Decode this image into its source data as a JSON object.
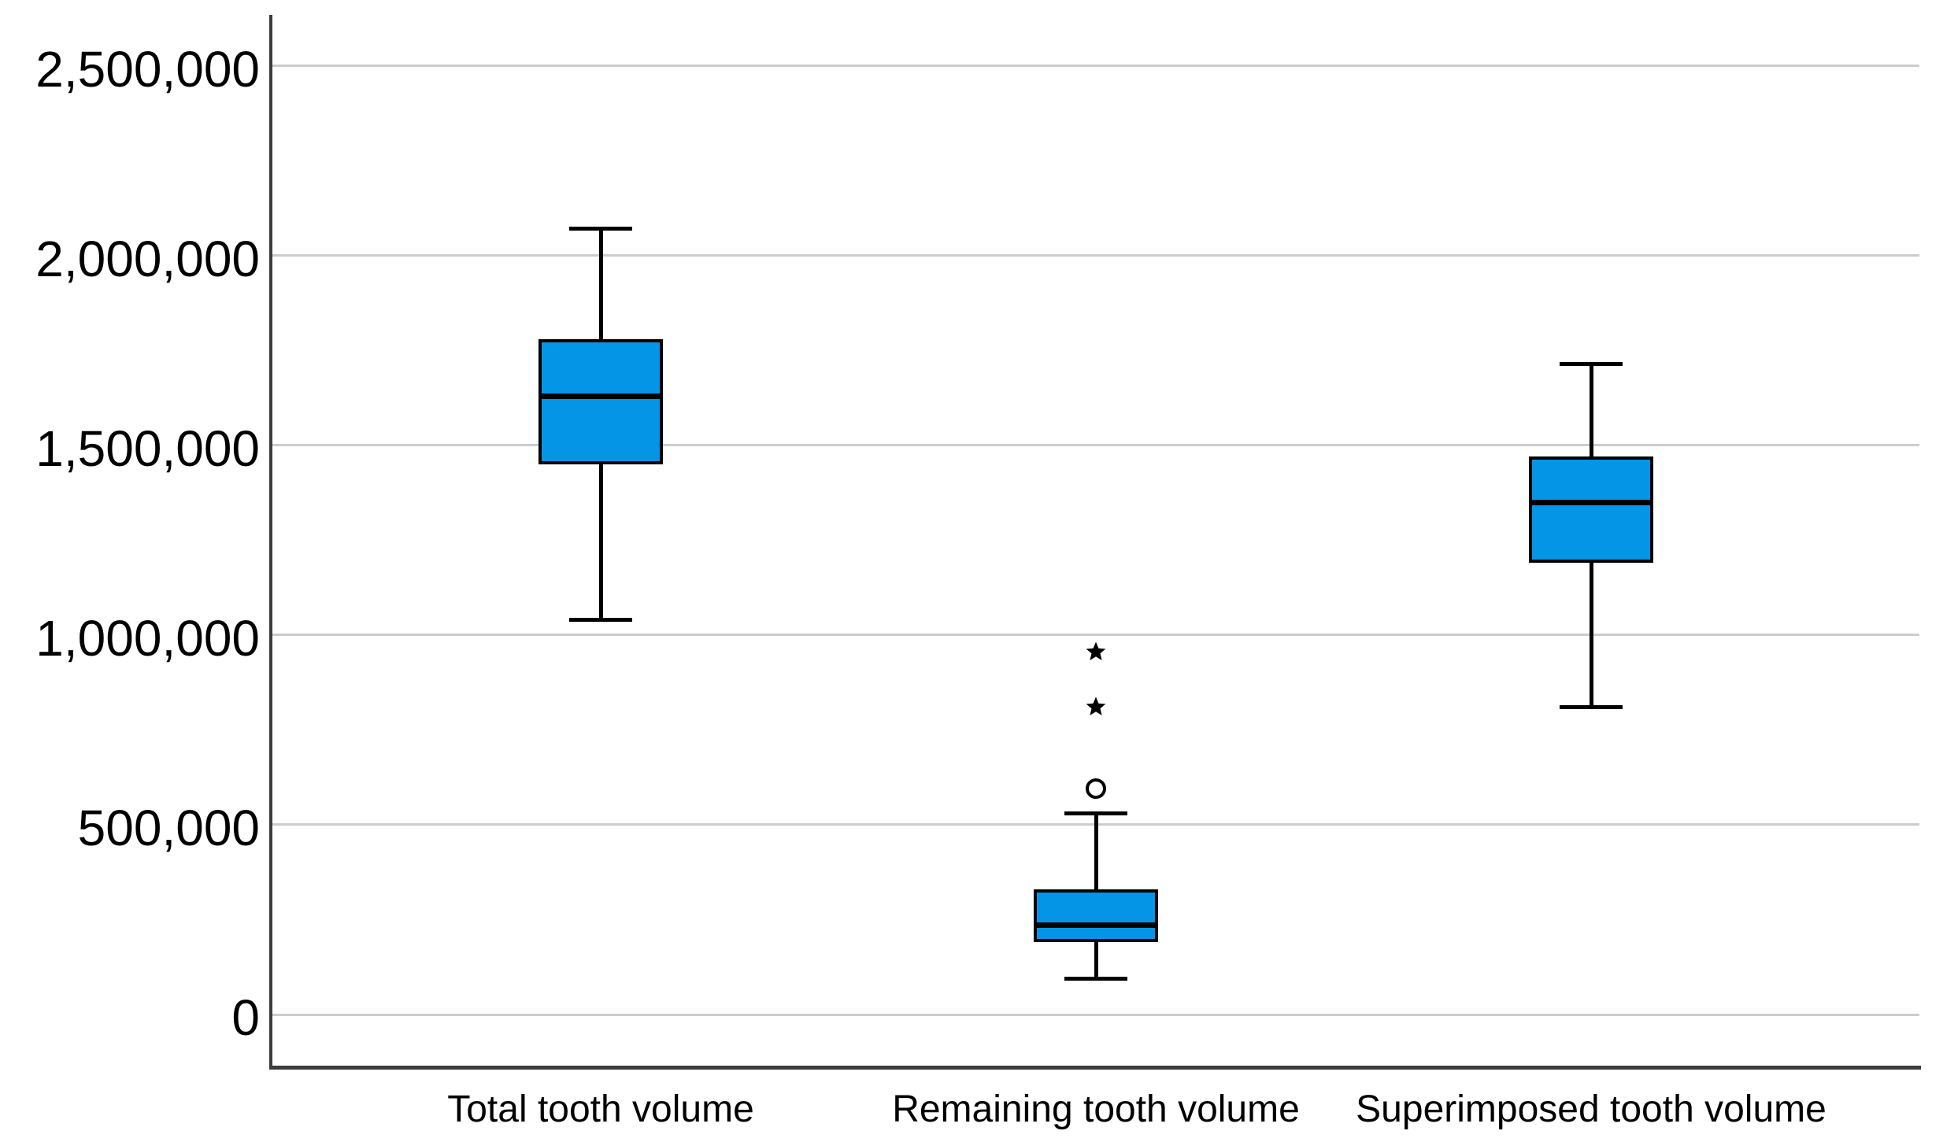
{
  "chart_data": {
    "type": "boxplot",
    "title": "",
    "categories": [
      "Total tooth volume",
      "Remaining tooth volume",
      "Superimposed tooth volume"
    ],
    "ylabel": "",
    "xlabel": "",
    "ylim": [
      0,
      2500000
    ],
    "yticks": [
      0,
      500000,
      1000000,
      1500000,
      2000000,
      2500000
    ],
    "ytick_labels": [
      "0",
      "500,000",
      "1,000,000",
      "1,500,000",
      "2,000,000",
      "2,500,000"
    ],
    "grid": true,
    "legend": "none",
    "series": [
      {
        "name": "Total tooth volume",
        "min": 1040000,
        "q1": 1450000,
        "median": 1630000,
        "q3": 1780000,
        "max": 2070000,
        "outliers_circle": [],
        "extremes_star": []
      },
      {
        "name": "Remaining tooth volume",
        "min": 95000,
        "q1": 190000,
        "median": 235000,
        "q3": 330000,
        "max": 530000,
        "outliers_circle": [
          595000
        ],
        "extremes_star": [
          810000,
          955000
        ]
      },
      {
        "name": "Superimposed tooth volume",
        "min": 810000,
        "q1": 1190000,
        "median": 1350000,
        "q3": 1470000,
        "max": 1715000,
        "outliers_circle": [],
        "extremes_star": []
      }
    ],
    "markers": {
      "circle": "outlier-marker",
      "star": "extreme-outlier-marker"
    },
    "colors": {
      "box_fill": "#0495e6",
      "box_border": "#000000",
      "median_line": "#000000",
      "whisker": "#000000",
      "gridline": "#cccccc",
      "axis_line": "#3d3d3d",
      "background": "#ffffff",
      "text": "#000000"
    }
  }
}
